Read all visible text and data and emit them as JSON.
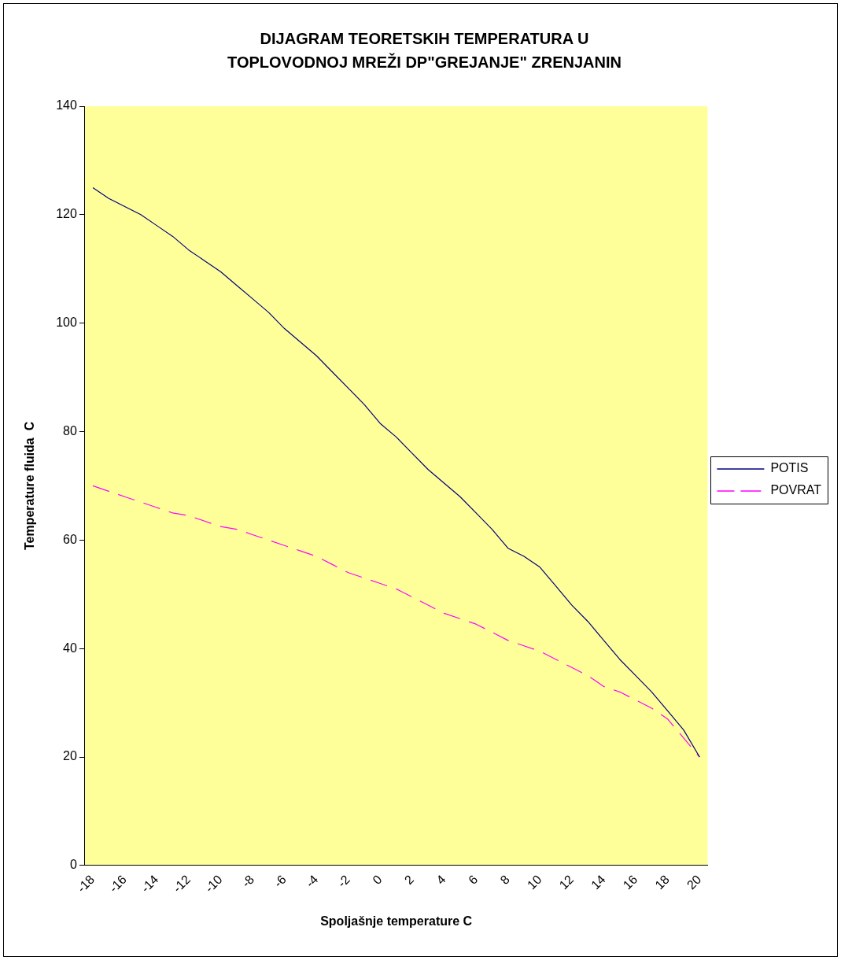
{
  "chart_data": {
    "type": "line",
    "title": "DIJAGRAM TEORETSKIH TEMPERATURA U TOPLOVODNOJ MREŽI DP\"GREJANJE\" ZRENJANIN",
    "xlabel": "Spoljašnje temperature C",
    "ylabel": "Temperature fluida  C",
    "categories": [
      "-18",
      null,
      "-16",
      null,
      "-14",
      null,
      "-12",
      null,
      "-10",
      null,
      "-8",
      null,
      "-6",
      null,
      "-4",
      null,
      "-2",
      null,
      "0",
      null,
      "2",
      null,
      "4",
      null,
      "6",
      null,
      "8",
      null,
      "10",
      null,
      "12",
      null,
      "14",
      null,
      "16",
      null,
      "18",
      null,
      "20"
    ],
    "series": [
      {
        "name": "POTIS",
        "color": "#000080",
        "line_style": "solid",
        "values": [
          125,
          123,
          121.5,
          120,
          118,
          116,
          113.5,
          111.5,
          109.5,
          107,
          104.5,
          102,
          99,
          96.5,
          94,
          91,
          88,
          85,
          81.5,
          79,
          76,
          73,
          70.5,
          68,
          65,
          62,
          58.5,
          57,
          55,
          51.5,
          48,
          45,
          41.5,
          38,
          35,
          32,
          28.5,
          25,
          20
        ]
      },
      {
        "name": "POVRAT",
        "color": "#ff00ff",
        "line_style": "dashed",
        "values": [
          70,
          69,
          68,
          67,
          66,
          65,
          64.5,
          63.5,
          62.5,
          62,
          61,
          60,
          59,
          58,
          57,
          55.5,
          54,
          53,
          52,
          51,
          49.5,
          48,
          46.5,
          45.5,
          44.5,
          43,
          41.5,
          40.5,
          39.5,
          38,
          36.5,
          35,
          33,
          32,
          30.5,
          29,
          27,
          23.5,
          20
        ]
      }
    ],
    "ylim": [
      0,
      140
    ],
    "yticks": [
      0,
      20,
      40,
      60,
      80,
      100,
      120,
      140
    ],
    "grid": false,
    "legend": "right",
    "marker": "none"
  }
}
